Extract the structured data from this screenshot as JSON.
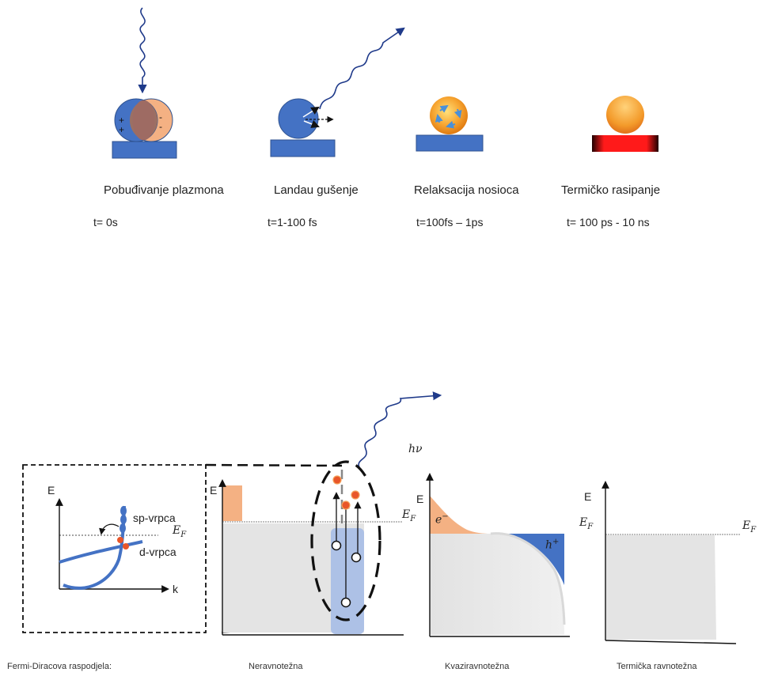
{
  "stages": [
    {
      "label": "Pobuđivanje plazmona",
      "time": "t= 0s"
    },
    {
      "label": "Landau gušenje",
      "time": "t=1-100 fs"
    },
    {
      "label": "Relaksacija nosioca",
      "time": "t=100fs – 1ps"
    },
    {
      "label": "Termičko rasipanje",
      "time": "t= 100 ps - 10 ns"
    }
  ],
  "plasmon_charges": {
    "plus": "+",
    "minus": "-"
  },
  "band_inset": {
    "e_axis": "E",
    "k_axis": "k",
    "sp_band": "sp-vrpca",
    "d_band": "d-vrpca",
    "fermi": {
      "base": "E",
      "sub": "F"
    }
  },
  "photon": {
    "label": "hν"
  },
  "panels": {
    "noneq_axis": "E",
    "quasi_axis": "E",
    "thermal_axis": "E",
    "electron": {
      "base": "e",
      "sup": "−"
    },
    "hole": {
      "base": "h",
      "sup": "+"
    }
  },
  "captions": [
    "Fermi-Diracova raspodjela:",
    "Neravnotežna",
    "Kvaziravnotežna",
    "Termička ravnotežna"
  ],
  "colors": {
    "blue": "#4472C4",
    "orange": "#F4B183",
    "hotRed": "#FF0000",
    "gray": "#E4E4E4",
    "navy": "#1F3A8A"
  }
}
